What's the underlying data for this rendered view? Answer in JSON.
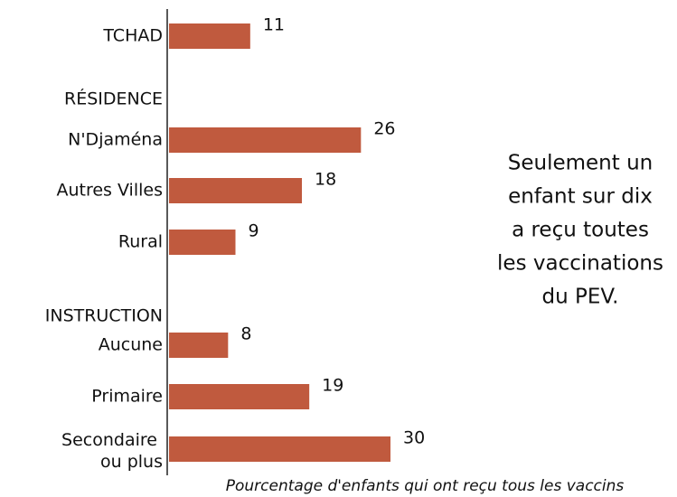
{
  "chart_data": {
    "type": "bar",
    "orientation": "horizontal",
    "categories": [
      "TCHAD",
      "RÉSIDENCE",
      "N'Djaména",
      "Autres Villes",
      "Rural",
      "INSTRUCTION",
      "Aucune",
      "Primaire",
      "Secondaire ou plus"
    ],
    "values": [
      11,
      null,
      26,
      18,
      9,
      null,
      8,
      19,
      30
    ],
    "color": "#c05a3e",
    "x_label": "Pourcentage d'enfants qui ont reçu tous les vaccins",
    "annotation": [
      "Seulement un",
      "enfant sur dix",
      "a reçu toutes",
      "les vaccinations",
      "du PEV."
    ]
  }
}
